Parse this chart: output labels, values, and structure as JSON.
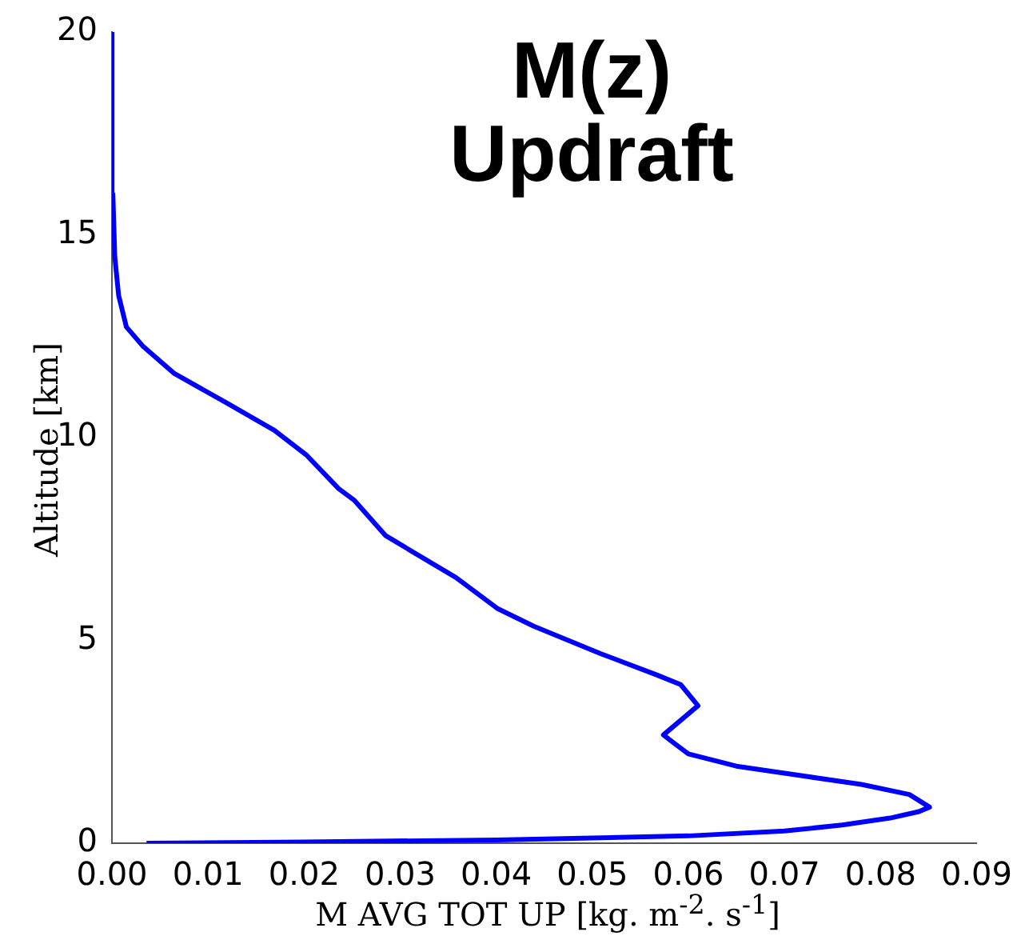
{
  "chart_data": {
    "type": "line",
    "title": "M(z)\nUpdraft",
    "xlabel": "M AVG TOT UP [kg. m$^{-2}$. s$^{-1}$]",
    "ylabel": "Altitude [km]",
    "xlim": [
      0,
      0.09
    ],
    "ylim": [
      0,
      20
    ],
    "xticks": [
      {
        "value": 0,
        "label": "0.00"
      },
      {
        "value": 0.01,
        "label": "0.01"
      },
      {
        "value": 0.02,
        "label": "0.02"
      },
      {
        "value": 0.03,
        "label": "0.03"
      },
      {
        "value": 0.04,
        "label": "0.04"
      },
      {
        "value": 0.05,
        "label": "0.05"
      },
      {
        "value": 0.06,
        "label": "0.06"
      },
      {
        "value": 0.07,
        "label": "0.07"
      },
      {
        "value": 0.08,
        "label": "0.08"
      },
      {
        "value": 0.09,
        "label": "0.09"
      }
    ],
    "yticks": [
      0,
      5,
      10,
      15,
      20
    ],
    "grid": false,
    "legend": false,
    "marker": "none",
    "line_style": "solid",
    "series": [
      {
        "color": "#0000ff",
        "x": [
          0.0036,
          0.02,
          0.04,
          0.06,
          0.07,
          0.076,
          0.081,
          0.084,
          0.0851,
          0.083,
          0.078,
          0.0713,
          0.065,
          0.06,
          0.0585,
          0.0574,
          0.061,
          0.0592,
          0.0567,
          0.0509,
          0.0439,
          0.0401,
          0.0358,
          0.0285,
          0.0252,
          0.0236,
          0.0202,
          0.0169,
          0.0119,
          0.0065,
          0.0032,
          0.0015,
          0.0007,
          0.0003,
          0.0001,
          0
        ],
        "values": [
          0,
          0.03,
          0.08,
          0.18,
          0.3,
          0.45,
          0.62,
          0.78,
          0.89,
          1.2,
          1.45,
          1.68,
          1.9,
          2.2,
          2.47,
          2.67,
          3.39,
          3.91,
          4.15,
          4.67,
          5.35,
          5.79,
          6.55,
          7.58,
          8.46,
          8.74,
          9.58,
          10.18,
          10.86,
          11.58,
          12.26,
          12.73,
          13.5,
          14.45,
          16,
          20
        ]
      }
    ]
  }
}
